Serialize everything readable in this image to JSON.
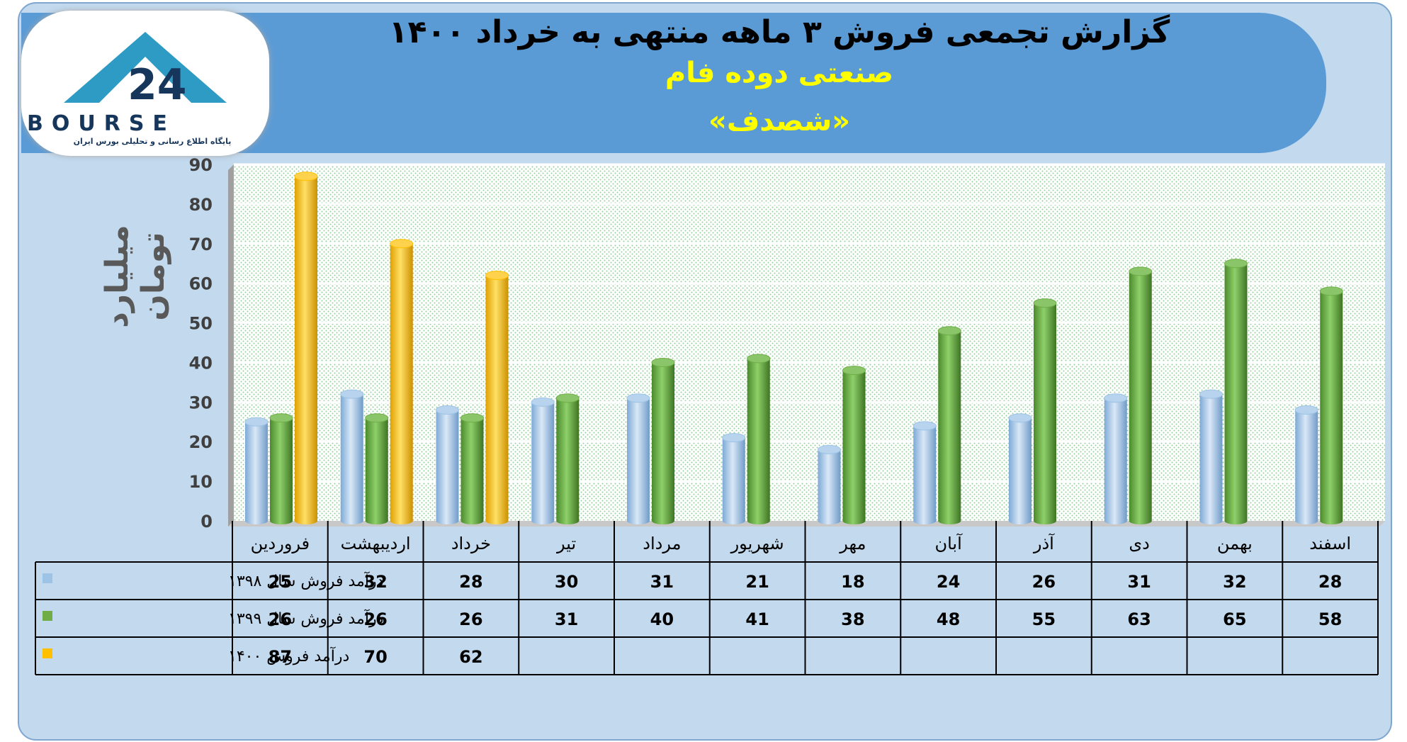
{
  "header": {
    "title": "گزارش تجمعی فروش ۳ ماهه منتهی به خرداد ۱۴۰۰",
    "company": "صنعتی دوده فام",
    "symbol": "«شصدف»"
  },
  "logo": {
    "text": "BOURSE",
    "subtitle": "پایگاه اطلاع رسانی و تحلیلی بورس ایران"
  },
  "colors": {
    "series_1398": "#9dc3e6",
    "series_1399": "#70ad47",
    "series_1400": "#ffc000",
    "banner": "#5b9bd5",
    "background": "#c2d9ee"
  },
  "chart_data": {
    "type": "bar",
    "title": "گزارش تجمعی فروش ۳ ماهه منتهی به خرداد ۱۴۰۰",
    "ylabel": "میلیارد تومان",
    "xlabel": "",
    "ylim": [
      0,
      90
    ],
    "yticks": [
      0,
      10,
      20,
      30,
      40,
      50,
      60,
      70,
      80,
      90
    ],
    "grid": "dotted-background",
    "legend": "table-left",
    "categories": [
      "فروردین",
      "اردیبهشت",
      "خرداد",
      "تیر",
      "مرداد",
      "شهریور",
      "مهر",
      "آبان",
      "آذر",
      "دی",
      "بهمن",
      "اسفند"
    ],
    "series": [
      {
        "name": "درآمد فروش سال ۱۳۹۸",
        "values": [
          25,
          32,
          28,
          30,
          31,
          21,
          18,
          24,
          26,
          31,
          32,
          28
        ]
      },
      {
        "name": "درآمد فروش سال ۱۳۹۹",
        "values": [
          26,
          26,
          26,
          31,
          40,
          41,
          38,
          48,
          55,
          63,
          65,
          58
        ]
      },
      {
        "name": "درآمد فروش ۱۴۰۰",
        "values": [
          87,
          70,
          62,
          null,
          null,
          null,
          null,
          null,
          null,
          null,
          null,
          null
        ]
      }
    ]
  }
}
